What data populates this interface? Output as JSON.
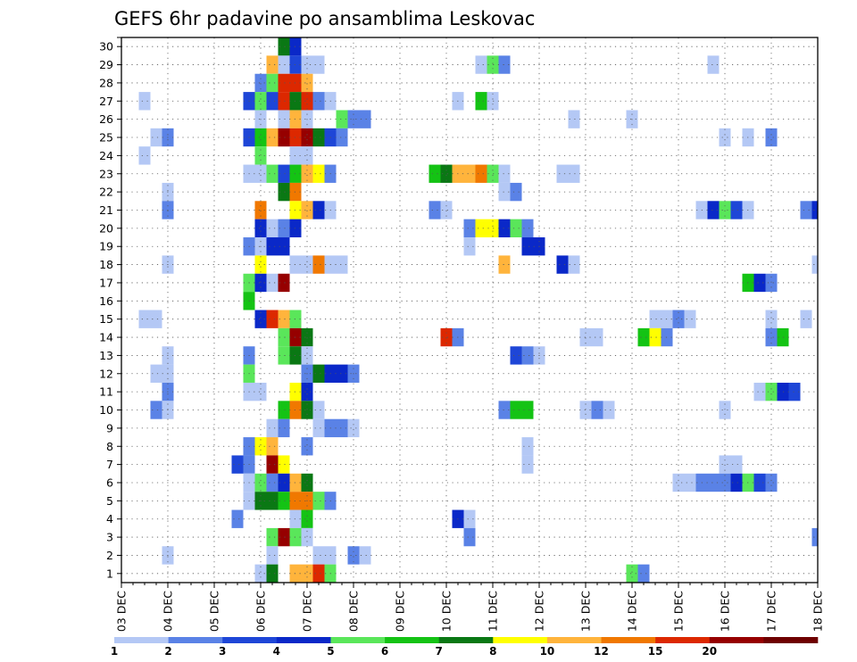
{
  "chart_data": {
    "type": "heatmap",
    "title": "GEFS 6hr padavine po ansamblima Leskovac",
    "x_ticks": [
      "03 DEC",
      "04 DEC",
      "05 DEC",
      "06 DEC",
      "07 DEC",
      "08 DEC",
      "09 DEC",
      "10 DEC",
      "11 DEC",
      "12 DEC",
      "13 DEC",
      "14 DEC",
      "15 DEC",
      "16 DEC",
      "17 DEC",
      "18 DEC"
    ],
    "y_ticks": [
      "1",
      "2",
      "3",
      "4",
      "5",
      "6",
      "7",
      "8",
      "9",
      "10",
      "11",
      "12",
      "13",
      "14",
      "15",
      "16",
      "17",
      "18",
      "19",
      "20",
      "21",
      "22",
      "23",
      "24",
      "25",
      "26",
      "27",
      "28",
      "29",
      "30"
    ],
    "xlim_steps": [
      0,
      60
    ],
    "ylim_members": [
      0,
      30
    ],
    "grid": true,
    "colorbar": {
      "levels": [
        "1",
        "2",
        "3",
        "4",
        "5",
        "6",
        "7",
        "8",
        "10",
        "12",
        "15",
        "20"
      ],
      "colors": [
        "#b4c8f5",
        "#5a82e6",
        "#1e46d7",
        "#0a28c8",
        "#5ae65a",
        "#14c314",
        "#0a7814",
        "#ffff00",
        "#ffb43c",
        "#f07800",
        "#dc2800",
        "#960000",
        "#6e0000"
      ]
    },
    "cells_note": "each cell = [step_index_6h_from_03DEC00, member, color_level_index]",
    "cells": [
      [
        14,
        30,
        6
      ],
      [
        15,
        30,
        3
      ],
      [
        13,
        29,
        8
      ],
      [
        14,
        29,
        0
      ],
      [
        15,
        29,
        2
      ],
      [
        16,
        29,
        0
      ],
      [
        17,
        29,
        0
      ],
      [
        31,
        29,
        0
      ],
      [
        32,
        29,
        4
      ],
      [
        33,
        29,
        1
      ],
      [
        51,
        29,
        0
      ],
      [
        12,
        28,
        1
      ],
      [
        13,
        28,
        4
      ],
      [
        14,
        28,
        10
      ],
      [
        15,
        28,
        10
      ],
      [
        16,
        28,
        8
      ],
      [
        2,
        27,
        0
      ],
      [
        11,
        27,
        2
      ],
      [
        12,
        27,
        4
      ],
      [
        13,
        27,
        2
      ],
      [
        14,
        27,
        10
      ],
      [
        15,
        27,
        6
      ],
      [
        16,
        27,
        10
      ],
      [
        17,
        27,
        1
      ],
      [
        18,
        27,
        0
      ],
      [
        29,
        27,
        0
      ],
      [
        31,
        27,
        5
      ],
      [
        32,
        27,
        0
      ],
      [
        12,
        26,
        0
      ],
      [
        14,
        26,
        0
      ],
      [
        15,
        26,
        8
      ],
      [
        16,
        26,
        0
      ],
      [
        19,
        26,
        4
      ],
      [
        20,
        26,
        1
      ],
      [
        21,
        26,
        1
      ],
      [
        39,
        26,
        0
      ],
      [
        44,
        26,
        0
      ],
      [
        3,
        25,
        0
      ],
      [
        4,
        25,
        1
      ],
      [
        11,
        25,
        2
      ],
      [
        12,
        25,
        5
      ],
      [
        13,
        25,
        8
      ],
      [
        14,
        25,
        11
      ],
      [
        15,
        25,
        10
      ],
      [
        16,
        25,
        11
      ],
      [
        17,
        25,
        6
      ],
      [
        18,
        25,
        2
      ],
      [
        19,
        25,
        1
      ],
      [
        52,
        25,
        0
      ],
      [
        54,
        25,
        0
      ],
      [
        56,
        25,
        1
      ],
      [
        2,
        24,
        0
      ],
      [
        12,
        24,
        4
      ],
      [
        15,
        24,
        0
      ],
      [
        16,
        24,
        0
      ],
      [
        11,
        23,
        0
      ],
      [
        12,
        23,
        0
      ],
      [
        13,
        23,
        4
      ],
      [
        14,
        23,
        2
      ],
      [
        15,
        23,
        5
      ],
      [
        16,
        23,
        8
      ],
      [
        17,
        23,
        7
      ],
      [
        18,
        23,
        1
      ],
      [
        27,
        23,
        5
      ],
      [
        28,
        23,
        6
      ],
      [
        29,
        23,
        8
      ],
      [
        30,
        23,
        8
      ],
      [
        31,
        23,
        9
      ],
      [
        32,
        23,
        4
      ],
      [
        33,
        23,
        0
      ],
      [
        38,
        23,
        0
      ],
      [
        39,
        23,
        0
      ],
      [
        4,
        22,
        0
      ],
      [
        14,
        22,
        6
      ],
      [
        15,
        22,
        9
      ],
      [
        33,
        22,
        0
      ],
      [
        34,
        22,
        1
      ],
      [
        4,
        21,
        1
      ],
      [
        12,
        21,
        9
      ],
      [
        15,
        21,
        7
      ],
      [
        16,
        21,
        8
      ],
      [
        17,
        21,
        3
      ],
      [
        18,
        21,
        0
      ],
      [
        27,
        21,
        1
      ],
      [
        28,
        21,
        0
      ],
      [
        50,
        21,
        0
      ],
      [
        51,
        21,
        3
      ],
      [
        52,
        21,
        4
      ],
      [
        53,
        21,
        2
      ],
      [
        54,
        21,
        0
      ],
      [
        59,
        21,
        1
      ],
      [
        60,
        21,
        3
      ],
      [
        12,
        20,
        3
      ],
      [
        13,
        20,
        0
      ],
      [
        14,
        20,
        1
      ],
      [
        15,
        20,
        3
      ],
      [
        30,
        20,
        1
      ],
      [
        31,
        20,
        7
      ],
      [
        32,
        20,
        7
      ],
      [
        33,
        20,
        3
      ],
      [
        34,
        20,
        4
      ],
      [
        35,
        20,
        1
      ],
      [
        11,
        19,
        1
      ],
      [
        12,
        19,
        0
      ],
      [
        13,
        19,
        3
      ],
      [
        14,
        19,
        3
      ],
      [
        30,
        19,
        0
      ],
      [
        35,
        19,
        3
      ],
      [
        36,
        19,
        3
      ],
      [
        4,
        18,
        0
      ],
      [
        12,
        18,
        7
      ],
      [
        15,
        18,
        0
      ],
      [
        16,
        18,
        0
      ],
      [
        17,
        18,
        9
      ],
      [
        18,
        18,
        0
      ],
      [
        19,
        18,
        0
      ],
      [
        33,
        18,
        8
      ],
      [
        38,
        18,
        3
      ],
      [
        39,
        18,
        0
      ],
      [
        60,
        18,
        0
      ],
      [
        11,
        17,
        4
      ],
      [
        12,
        17,
        3
      ],
      [
        13,
        17,
        0
      ],
      [
        14,
        17,
        11
      ],
      [
        54,
        17,
        5
      ],
      [
        55,
        17,
        3
      ],
      [
        56,
        17,
        1
      ],
      [
        11,
        16,
        5
      ],
      [
        2,
        15,
        0
      ],
      [
        3,
        15,
        0
      ],
      [
        12,
        15,
        3
      ],
      [
        13,
        15,
        10
      ],
      [
        14,
        15,
        8
      ],
      [
        15,
        15,
        4
      ],
      [
        46,
        15,
        0
      ],
      [
        47,
        15,
        0
      ],
      [
        48,
        15,
        1
      ],
      [
        49,
        15,
        0
      ],
      [
        56,
        15,
        0
      ],
      [
        59,
        15,
        0
      ],
      [
        14,
        14,
        4
      ],
      [
        15,
        14,
        11
      ],
      [
        16,
        14,
        6
      ],
      [
        28,
        14,
        10
      ],
      [
        29,
        14,
        1
      ],
      [
        40,
        14,
        0
      ],
      [
        41,
        14,
        0
      ],
      [
        45,
        14,
        5
      ],
      [
        46,
        14,
        7
      ],
      [
        47,
        14,
        1
      ],
      [
        56,
        14,
        1
      ],
      [
        57,
        14,
        5
      ],
      [
        4,
        13,
        0
      ],
      [
        11,
        13,
        1
      ],
      [
        14,
        13,
        4
      ],
      [
        15,
        13,
        6
      ],
      [
        16,
        13,
        0
      ],
      [
        34,
        13,
        2
      ],
      [
        35,
        13,
        1
      ],
      [
        36,
        13,
        0
      ],
      [
        3,
        12,
        0
      ],
      [
        4,
        12,
        0
      ],
      [
        11,
        12,
        4
      ],
      [
        16,
        12,
        1
      ],
      [
        17,
        12,
        6
      ],
      [
        18,
        12,
        3
      ],
      [
        19,
        12,
        3
      ],
      [
        20,
        12,
        1
      ],
      [
        4,
        11,
        1
      ],
      [
        11,
        11,
        0
      ],
      [
        12,
        11,
        0
      ],
      [
        15,
        11,
        7
      ],
      [
        16,
        11,
        3
      ],
      [
        55,
        11,
        0
      ],
      [
        56,
        11,
        4
      ],
      [
        57,
        11,
        3
      ],
      [
        58,
        11,
        2
      ],
      [
        3,
        10,
        1
      ],
      [
        4,
        10,
        0
      ],
      [
        14,
        10,
        5
      ],
      [
        15,
        10,
        9
      ],
      [
        16,
        10,
        6
      ],
      [
        17,
        10,
        0
      ],
      [
        33,
        10,
        1
      ],
      [
        34,
        10,
        5
      ],
      [
        35,
        10,
        5
      ],
      [
        40,
        10,
        0
      ],
      [
        41,
        10,
        1
      ],
      [
        42,
        10,
        0
      ],
      [
        52,
        10,
        0
      ],
      [
        13,
        9,
        0
      ],
      [
        14,
        9,
        1
      ],
      [
        17,
        9,
        0
      ],
      [
        18,
        9,
        1
      ],
      [
        19,
        9,
        1
      ],
      [
        20,
        9,
        0
      ],
      [
        11,
        8,
        1
      ],
      [
        12,
        8,
        7
      ],
      [
        13,
        8,
        8
      ],
      [
        16,
        8,
        1
      ],
      [
        35,
        8,
        0
      ],
      [
        10,
        7,
        2
      ],
      [
        11,
        7,
        1
      ],
      [
        13,
        7,
        11
      ],
      [
        14,
        7,
        7
      ],
      [
        35,
        7,
        0
      ],
      [
        52,
        7,
        0
      ],
      [
        53,
        7,
        0
      ],
      [
        11,
        6,
        0
      ],
      [
        12,
        6,
        4
      ],
      [
        13,
        6,
        1
      ],
      [
        14,
        6,
        3
      ],
      [
        15,
        6,
        8
      ],
      [
        16,
        6,
        6
      ],
      [
        48,
        6,
        0
      ],
      [
        49,
        6,
        0
      ],
      [
        50,
        6,
        1
      ],
      [
        51,
        6,
        1
      ],
      [
        52,
        6,
        1
      ],
      [
        53,
        6,
        3
      ],
      [
        54,
        6,
        4
      ],
      [
        55,
        6,
        2
      ],
      [
        56,
        6,
        1
      ],
      [
        11,
        5,
        0
      ],
      [
        12,
        5,
        6
      ],
      [
        13,
        5,
        6
      ],
      [
        14,
        5,
        5
      ],
      [
        15,
        5,
        9
      ],
      [
        16,
        5,
        9
      ],
      [
        17,
        5,
        4
      ],
      [
        18,
        5,
        1
      ],
      [
        10,
        4,
        1
      ],
      [
        15,
        4,
        0
      ],
      [
        16,
        4,
        5
      ],
      [
        29,
        4,
        3
      ],
      [
        30,
        4,
        0
      ],
      [
        13,
        3,
        4
      ],
      [
        14,
        3,
        11
      ],
      [
        15,
        3,
        4
      ],
      [
        16,
        3,
        0
      ],
      [
        30,
        3,
        1
      ],
      [
        60,
        3,
        1
      ],
      [
        4,
        2,
        0
      ],
      [
        13,
        2,
        0
      ],
      [
        17,
        2,
        0
      ],
      [
        18,
        2,
        0
      ],
      [
        20,
        2,
        1
      ],
      [
        21,
        2,
        0
      ],
      [
        12,
        1,
        0
      ],
      [
        13,
        1,
        6
      ],
      [
        15,
        1,
        8
      ],
      [
        16,
        1,
        8
      ],
      [
        17,
        1,
        10
      ],
      [
        18,
        1,
        4
      ],
      [
        44,
        1,
        4
      ],
      [
        45,
        1,
        1
      ]
    ]
  }
}
